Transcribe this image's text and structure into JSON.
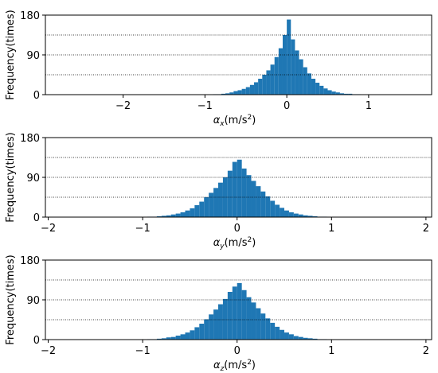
{
  "chart_data": [
    {
      "type": "histogram",
      "color": "#1f77b4",
      "ylabel": "Frequency(times)",
      "xlabel": [
        "α",
        "x",
        "(m/s",
        "2",
        ")"
      ],
      "xlim": [
        -2.95,
        1.77
      ],
      "xticks": [
        {
          "value": -2,
          "label": "−2"
        },
        {
          "value": -1,
          "label": "−1"
        },
        0,
        1
      ],
      "ylim": [
        0,
        180
      ],
      "yticks": [
        0,
        90,
        180
      ],
      "grid_lines": [
        45,
        90,
        135
      ],
      "bins": [
        -1,
        -0.95,
        -0.9,
        -0.85,
        -0.8,
        -0.75,
        -0.7,
        -0.65,
        -0.6,
        -0.55,
        -0.5,
        -0.45,
        -0.4,
        -0.35,
        -0.3,
        -0.25,
        -0.2,
        -0.15,
        -0.1,
        -0.05,
        0,
        0.05,
        0.1,
        0.15,
        0.2,
        0.25,
        0.3,
        0.35,
        0.4,
        0.45,
        0.5,
        0.55,
        0.6,
        0.65,
        0.7,
        0.75,
        0.8,
        0.85,
        0.9,
        0.95,
        1
      ],
      "values": [
        0,
        0,
        1,
        1,
        2,
        3,
        5,
        8,
        10,
        13,
        17,
        22,
        28,
        36,
        45,
        55,
        68,
        85,
        105,
        135,
        170,
        125,
        100,
        80,
        62,
        48,
        36,
        27,
        20,
        14,
        10,
        7,
        5,
        3,
        2,
        2,
        1,
        1,
        0,
        0
      ]
    },
    {
      "type": "histogram",
      "color": "#1f77b4",
      "ylabel": "Frequency(times)",
      "xlabel": [
        "α",
        "y",
        "(m/s",
        "2",
        ")"
      ],
      "xlim": [
        -2.03,
        2.06
      ],
      "xticks": [
        {
          "value": -2,
          "label": "−2"
        },
        {
          "value": -1,
          "label": "−1"
        },
        0,
        1,
        2
      ],
      "ylim": [
        0,
        180
      ],
      "yticks": [
        0,
        90,
        180
      ],
      "grid_lines": [
        45,
        90,
        135
      ],
      "bins": [
        -1,
        -0.95,
        -0.9,
        -0.85,
        -0.8,
        -0.75,
        -0.7,
        -0.65,
        -0.6,
        -0.55,
        -0.5,
        -0.45,
        -0.4,
        -0.35,
        -0.3,
        -0.25,
        -0.2,
        -0.15,
        -0.1,
        -0.05,
        0,
        0.05,
        0.1,
        0.15,
        0.2,
        0.25,
        0.3,
        0.35,
        0.4,
        0.45,
        0.5,
        0.55,
        0.6,
        0.65,
        0.7,
        0.75,
        0.8,
        0.85,
        0.9,
        0.95,
        1
      ],
      "values": [
        0,
        1,
        1,
        2,
        3,
        4,
        6,
        8,
        11,
        15,
        20,
        27,
        35,
        45,
        55,
        66,
        78,
        90,
        105,
        125,
        130,
        110,
        95,
        82,
        70,
        58,
        47,
        37,
        28,
        21,
        15,
        11,
        8,
        6,
        4,
        3,
        2,
        1,
        1,
        0
      ]
    },
    {
      "type": "histogram",
      "color": "#1f77b4",
      "ylabel": "Frequency(times)",
      "xlabel": [
        "α",
        "z",
        "(m/s",
        "2",
        ")"
      ],
      "xlim": [
        -2.03,
        2.06
      ],
      "xticks": [
        {
          "value": -2,
          "label": "−2"
        },
        {
          "value": -1,
          "label": "−1"
        },
        0,
        1,
        2
      ],
      "ylim": [
        0,
        180
      ],
      "yticks": [
        0,
        90,
        180
      ],
      "grid_lines": [
        45,
        90,
        135
      ],
      "bins": [
        -1,
        -0.95,
        -0.9,
        -0.85,
        -0.8,
        -0.75,
        -0.7,
        -0.65,
        -0.6,
        -0.55,
        -0.5,
        -0.45,
        -0.4,
        -0.35,
        -0.3,
        -0.25,
        -0.2,
        -0.15,
        -0.1,
        -0.05,
        0,
        0.05,
        0.1,
        0.15,
        0.2,
        0.25,
        0.3,
        0.35,
        0.4,
        0.45,
        0.5,
        0.55,
        0.6,
        0.65,
        0.7,
        0.75,
        0.8,
        0.85,
        0.9,
        0.95,
        1
      ],
      "values": [
        0,
        1,
        1,
        2,
        3,
        5,
        6,
        9,
        12,
        16,
        21,
        28,
        36,
        46,
        57,
        68,
        80,
        92,
        108,
        120,
        128,
        112,
        96,
        84,
        71,
        59,
        48,
        38,
        29,
        22,
        16,
        12,
        8,
        6,
        4,
        3,
        2,
        1,
        1,
        0
      ]
    }
  ]
}
